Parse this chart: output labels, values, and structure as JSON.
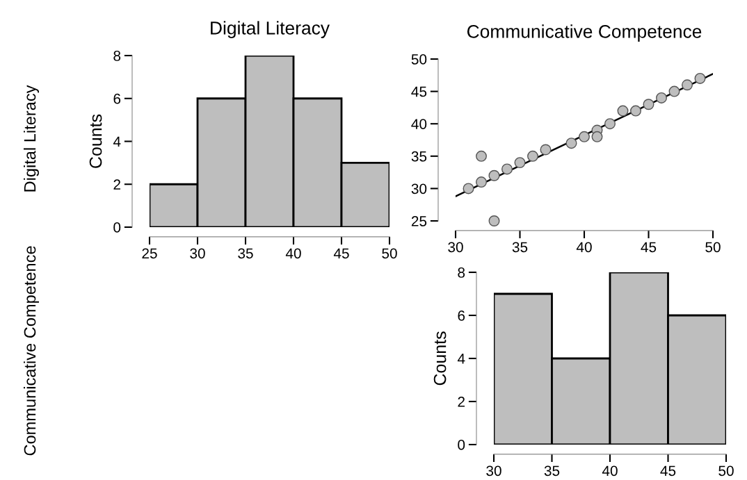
{
  "chart_data": [
    {
      "type": "histogram",
      "title": "Digital Literacy",
      "ylabel": "Counts",
      "annotations": [
        "Digital Literacy"
      ],
      "bins": [
        25,
        30,
        35,
        40,
        45,
        50
      ],
      "values": [
        2,
        6,
        8,
        6,
        3
      ],
      "color": "#bebebe",
      "xlim": [
        25,
        50
      ],
      "xticks": [
        25,
        30,
        35,
        40,
        45,
        50
      ],
      "ylim": [
        0,
        8
      ],
      "yticks": [
        0,
        2,
        4,
        6,
        8
      ],
      "grid": false
    },
    {
      "type": "scatter",
      "title": "Communicative Competence",
      "series": [
        {
          "type": "scatter",
          "marker": "circle",
          "color": "#bebebe",
          "x": [
            31,
            32,
            32,
            33,
            33,
            34,
            35,
            36,
            37,
            39,
            40,
            41,
            41,
            42,
            43,
            44,
            45,
            46,
            47,
            48,
            49
          ],
          "values": [
            30,
            31,
            35,
            32,
            25,
            33,
            34,
            35,
            36,
            37,
            38,
            39,
            38,
            40,
            42,
            42,
            43,
            44,
            45,
            46,
            47
          ]
        },
        {
          "type": "line",
          "color": "#000000",
          "x": [
            30,
            50
          ],
          "values": [
            28.8,
            47.7
          ]
        }
      ],
      "xlim": [
        30,
        50
      ],
      "xticks": [
        30,
        35,
        40,
        45,
        50
      ],
      "ylim": [
        25,
        50
      ],
      "yticks": [
        25,
        30,
        35,
        40,
        45,
        50
      ],
      "grid": false
    },
    {
      "type": "histogram",
      "ylabel": "Counts",
      "annotations": [
        "Communicative Competence"
      ],
      "bins": [
        30,
        35,
        40,
        45,
        50
      ],
      "values": [
        7,
        4,
        8,
        6
      ],
      "color": "#bebebe",
      "xlim": [
        30,
        50
      ],
      "xticks": [
        30,
        35,
        40,
        45,
        50
      ],
      "ylim": [
        0,
        8
      ],
      "yticks": [
        0,
        2,
        4,
        6,
        8
      ],
      "grid": false
    }
  ]
}
